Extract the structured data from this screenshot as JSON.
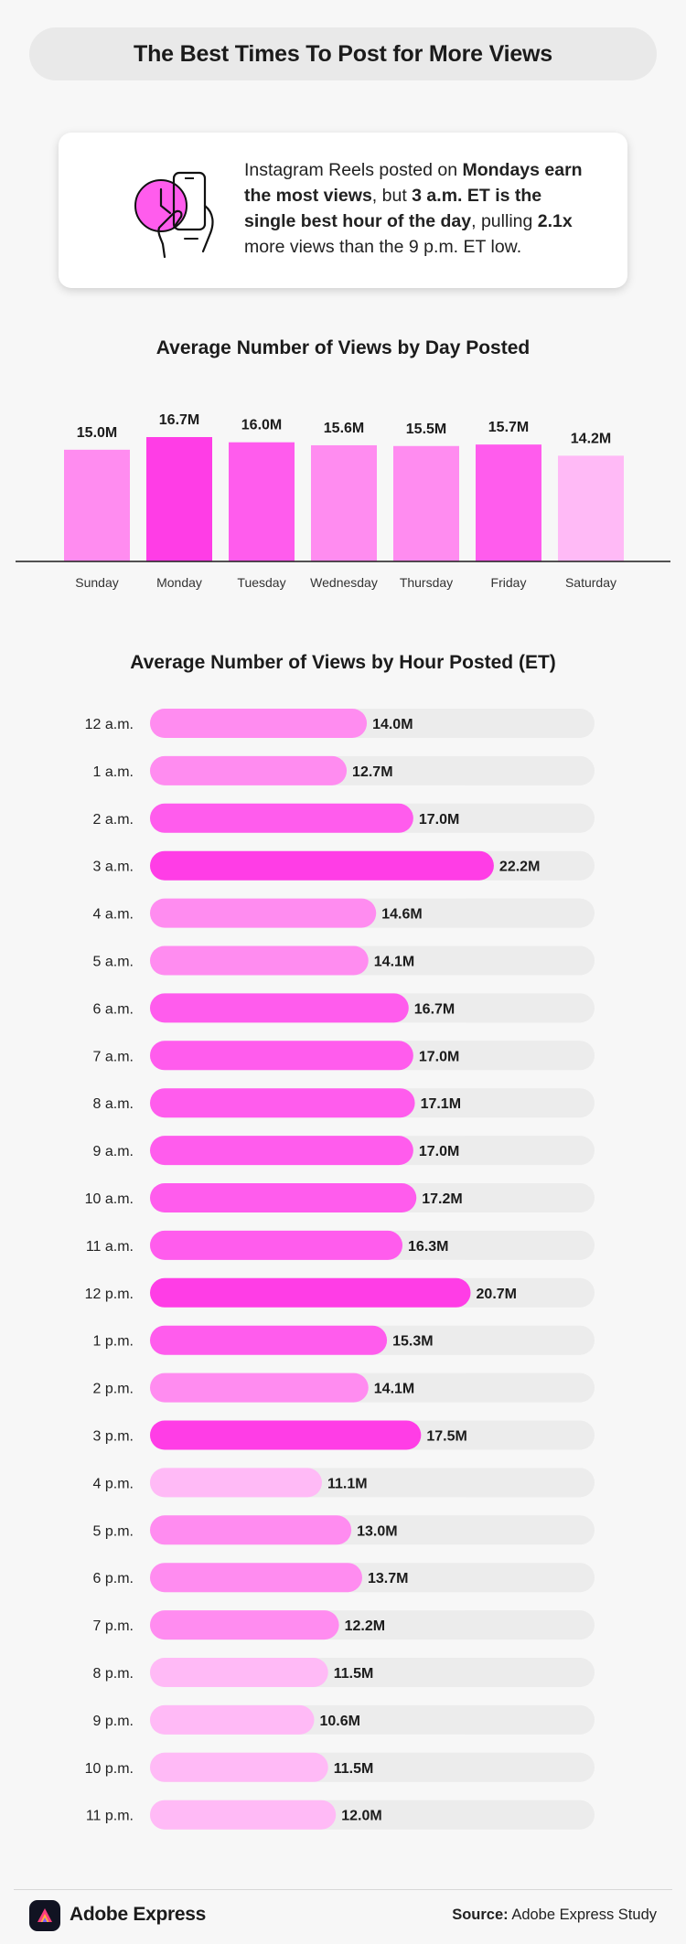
{
  "title": "The Best Times To Post for More Views",
  "info": {
    "icon": "phone-clock-icon",
    "text_parts": [
      {
        "t": "Instagram Reels posted on ",
        "b": false
      },
      {
        "t": "Mondays earn the most views",
        "b": true
      },
      {
        "t": ", but ",
        "b": false
      },
      {
        "t": "3 a.m. ET is the single best hour of the day",
        "b": true
      },
      {
        "t": ", pulling ",
        "b": false
      },
      {
        "t": "2.1x",
        "b": true
      },
      {
        "t": " more views than the 9 p.m. ET low.",
        "b": false
      }
    ]
  },
  "colors": {
    "bar_light": "#ffbaf6",
    "bar_mid": "#ff8cf0",
    "bar_strong": "#ff5ced",
    "bar_max": "#ff3de6",
    "track": "#ececec",
    "accent": "#ff3de6"
  },
  "chart_data": [
    {
      "type": "bar",
      "title": "Average Number of Views by Day Posted",
      "categories": [
        "Sunday",
        "Monday",
        "Tuesday",
        "Wednesday",
        "Thursday",
        "Friday",
        "Saturday"
      ],
      "values": [
        15.0,
        16.7,
        16.0,
        15.6,
        15.5,
        15.7,
        14.2
      ],
      "labels": [
        "15.0M",
        "16.7M",
        "16.0M",
        "15.6M",
        "15.5M",
        "15.7M",
        "14.2M"
      ],
      "shades": [
        "mid",
        "max",
        "strong",
        "mid",
        "mid",
        "strong",
        "light"
      ],
      "xlabel": "",
      "ylabel": "",
      "ylim": [
        0,
        16.7
      ],
      "grid": false
    },
    {
      "type": "bar",
      "orientation": "horizontal",
      "title": "Average Number of Views by Hour Posted (ET)",
      "categories": [
        "12 a.m.",
        "1 a.m.",
        "2 a.m.",
        "3 a.m.",
        "4 a.m.",
        "5 a.m.",
        "6 a.m.",
        "7 a.m.",
        "8 a.m.",
        "9 a.m.",
        "10 a.m.",
        "11 a.m.",
        "12 p.m.",
        "1 p.m.",
        "2 p.m.",
        "3 p.m.",
        "4 p.m.",
        "5 p.m.",
        "6 p.m.",
        "7 p.m.",
        "8 p.m.",
        "9 p.m.",
        "10 p.m.",
        "11 p.m."
      ],
      "values": [
        14.0,
        12.7,
        17.0,
        22.2,
        14.6,
        14.1,
        16.7,
        17.0,
        17.1,
        17.0,
        17.2,
        16.3,
        20.7,
        15.3,
        14.1,
        17.5,
        11.1,
        13.0,
        13.7,
        12.2,
        11.5,
        10.6,
        11.5,
        12.0
      ],
      "labels": [
        "14.0M",
        "12.7M",
        "17.0M",
        "22.2M",
        "14.6M",
        "14.1M",
        "16.7M",
        "17.0M",
        "17.1M",
        "17.0M",
        "17.2M",
        "16.3M",
        "20.7M",
        "15.3M",
        "14.1M",
        "17.5M",
        "11.1M",
        "13.0M",
        "13.7M",
        "12.2M",
        "11.5M",
        "10.6M",
        "11.5M",
        "12.0M"
      ],
      "shades": [
        "mid",
        "mid",
        "strong",
        "max",
        "mid",
        "mid",
        "strong",
        "strong",
        "strong",
        "strong",
        "strong",
        "strong",
        "max",
        "strong",
        "mid",
        "max",
        "light",
        "mid",
        "mid",
        "mid",
        "light",
        "light",
        "light",
        "light"
      ],
      "xlabel": "",
      "ylabel": "",
      "xlim": [
        0,
        28.7
      ],
      "grid": false
    }
  ],
  "footer": {
    "logo_icon": "adobe-express-logo-icon",
    "brand": "Adobe Express",
    "source_label": "Source:",
    "source_value": " Adobe Express Study"
  }
}
